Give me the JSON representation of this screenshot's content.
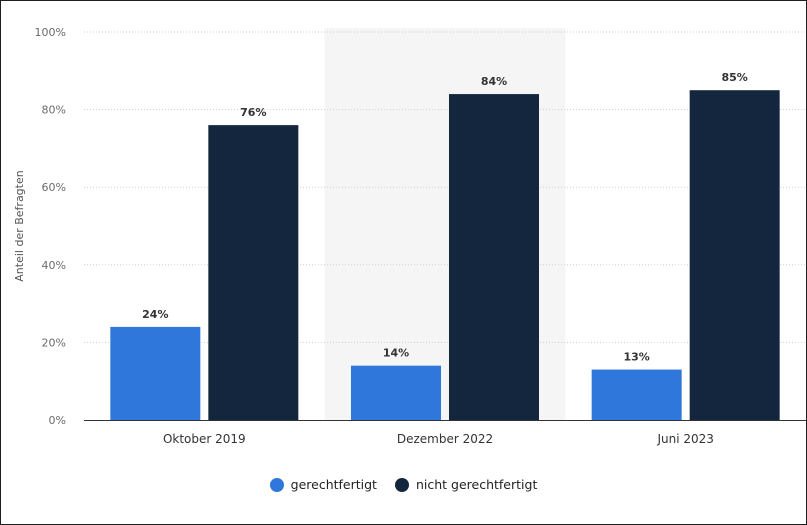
{
  "chart_data": {
    "type": "bar",
    "categories": [
      "Oktober 2019",
      "Dezember 2022",
      "Juni 2023"
    ],
    "series": [
      {
        "name": "gerechtfertigt",
        "values": [
          24,
          14,
          13
        ],
        "color": "#2f77db"
      },
      {
        "name": "nicht gerechtfertigt",
        "values": [
          76,
          84,
          85
        ],
        "color": "#13263d"
      }
    ],
    "value_labels": {
      "gerechtfertigt": [
        "24%",
        "14%",
        "13%"
      ],
      "nicht gerechtfertigt": [
        "76%",
        "84%",
        "85%"
      ]
    },
    "ylabel": "Anteil der Befragten",
    "xlabel": "",
    "ylim": [
      0,
      100
    ],
    "yticks": [
      "0%",
      "20%",
      "40%",
      "60%",
      "80%",
      "100%"
    ],
    "grid": true,
    "legend_position": "bottom-center",
    "highlighted_category": "Dezember 2022"
  },
  "legend": {
    "items": [
      {
        "label": "gerechtfertigt",
        "color": "#2f77db"
      },
      {
        "label": "nicht gerechtfertigt",
        "color": "#13263d"
      }
    ]
  }
}
